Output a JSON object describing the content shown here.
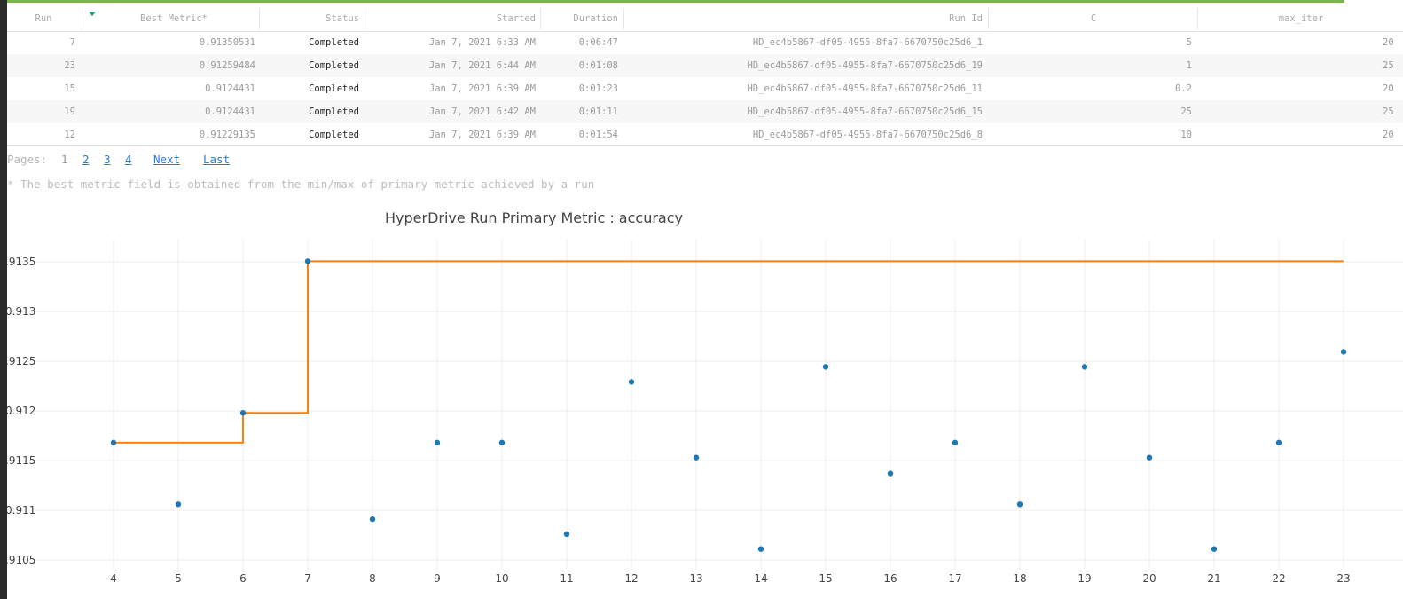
{
  "table": {
    "columns": [
      "Run",
      "Best Metric*",
      "Status",
      "Started",
      "Duration",
      "Run Id",
      "C",
      "max_iter"
    ],
    "rows": [
      {
        "run": "7",
        "metric": "0.91350531",
        "status": "Completed",
        "started": "Jan 7, 2021 6:33 AM",
        "duration": "0:06:47",
        "run_id": "HD_ec4b5867-df05-4955-8fa7-6670750c25d6_1",
        "c": "5",
        "max_iter": "20"
      },
      {
        "run": "23",
        "metric": "0.91259484",
        "status": "Completed",
        "started": "Jan 7, 2021 6:44 AM",
        "duration": "0:01:08",
        "run_id": "HD_ec4b5867-df05-4955-8fa7-6670750c25d6_19",
        "c": "1",
        "max_iter": "25"
      },
      {
        "run": "15",
        "metric": "0.9124431",
        "status": "Completed",
        "started": "Jan 7, 2021 6:39 AM",
        "duration": "0:01:23",
        "run_id": "HD_ec4b5867-df05-4955-8fa7-6670750c25d6_11",
        "c": "0.2",
        "max_iter": "20"
      },
      {
        "run": "19",
        "metric": "0.9124431",
        "status": "Completed",
        "started": "Jan 7, 2021 6:42 AM",
        "duration": "0:01:11",
        "run_id": "HD_ec4b5867-df05-4955-8fa7-6670750c25d6_15",
        "c": "25",
        "max_iter": "25"
      },
      {
        "run": "12",
        "metric": "0.91229135",
        "status": "Completed",
        "started": "Jan 7, 2021 6:39 AM",
        "duration": "0:01:54",
        "run_id": "HD_ec4b5867-df05-4955-8fa7-6670750c25d6_8",
        "c": "10",
        "max_iter": "20"
      }
    ],
    "sort_icon": "sort-descending-icon"
  },
  "pagination": {
    "label": "Pages:",
    "current": "1",
    "pages": [
      "2",
      "3",
      "4"
    ],
    "next": "Next",
    "last": "Last"
  },
  "footnote": "* The best metric field is obtained from the min/max of primary metric achieved by a run",
  "colors": {
    "accent_bar": "#7ab648",
    "point": "#1f77b4",
    "best_line": "#ff7f0e",
    "link": "#2a7bd8"
  },
  "chart_data": {
    "type": "scatter",
    "title": "HyperDrive Run Primary Metric : accuracy",
    "x_ticks": [
      "4",
      "5",
      "6",
      "7",
      "8",
      "9",
      "10",
      "11",
      "12",
      "13",
      "14",
      "15",
      "16",
      "17",
      "18",
      "19",
      "20",
      "21",
      "22",
      "23"
    ],
    "y_ticks": [
      ".9105",
      "0.911",
      ".9115",
      "0.912",
      ".9125",
      "0.913",
      ".9135"
    ],
    "xlim": [
      4,
      23
    ],
    "ylim": [
      0.9104,
      0.9136
    ],
    "grid": true,
    "series": [
      {
        "kind": "points",
        "x": [
          4,
          5,
          6,
          7,
          8,
          9,
          10,
          11,
          12,
          13,
          14,
          15,
          16,
          17,
          18,
          19,
          20,
          21,
          22,
          23
        ],
        "y": [
          0.91168,
          0.91106,
          0.91198,
          0.91350531,
          0.91091,
          0.91168,
          0.91168,
          0.91076,
          0.91229135,
          0.91153,
          0.91061,
          0.9124431,
          0.91137,
          0.91168,
          0.91106,
          0.9124431,
          0.91153,
          0.91061,
          0.91168,
          0.91259484
        ]
      },
      {
        "kind": "best-so-far",
        "x": [
          4,
          5,
          6,
          7,
          8,
          9,
          10,
          11,
          12,
          13,
          14,
          15,
          16,
          17,
          18,
          19,
          20,
          21,
          22,
          23
        ],
        "y": [
          0.91168,
          0.91168,
          0.91198,
          0.91350531,
          0.91350531,
          0.91350531,
          0.91350531,
          0.91350531,
          0.91350531,
          0.91350531,
          0.91350531,
          0.91350531,
          0.91350531,
          0.91350531,
          0.91350531,
          0.91350531,
          0.91350531,
          0.91350531,
          0.91350531,
          0.91350531
        ]
      }
    ]
  }
}
